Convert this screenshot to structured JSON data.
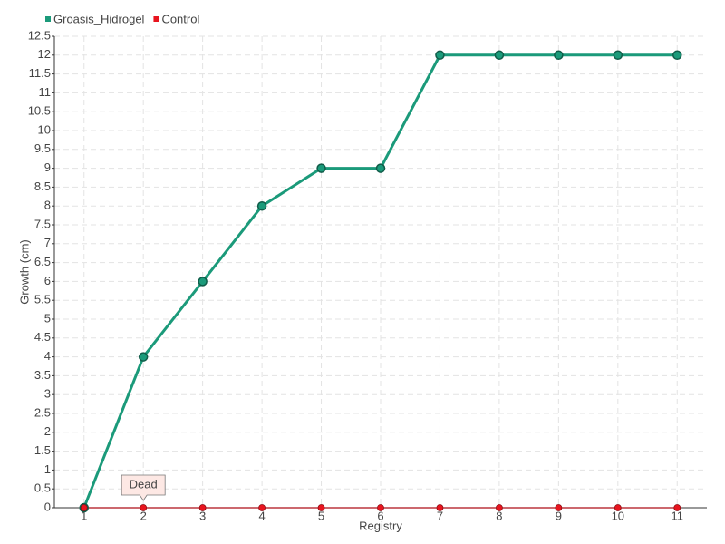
{
  "chart_data": {
    "type": "line",
    "x": [
      1,
      2,
      3,
      4,
      5,
      6,
      7,
      8,
      9,
      10,
      11
    ],
    "xlim": [
      0.5,
      11.5
    ],
    "xticks": [
      1,
      2,
      3,
      4,
      5,
      6,
      7,
      8,
      9,
      10,
      11
    ],
    "ylim": [
      0,
      12.5
    ],
    "yticks": [
      0,
      0.5,
      1,
      1.5,
      2,
      2.5,
      3,
      3.5,
      4,
      4.5,
      5,
      5.5,
      6,
      6.5,
      7,
      7.5,
      8,
      8.5,
      9,
      9.5,
      10,
      10.5,
      11,
      11.5,
      12,
      12.5
    ],
    "x_label": "Registry",
    "y_label": "Growth (cm)",
    "grid": true,
    "legend": "top-left",
    "series": [
      {
        "name": "Groasis_Hidrogel",
        "color": "#1b9a7a",
        "values": [
          0,
          4,
          6,
          8,
          9,
          9,
          12,
          12,
          12,
          12,
          12
        ]
      },
      {
        "name": "Control",
        "color": "#e8141e",
        "values": [
          0,
          0,
          0,
          0,
          0,
          0,
          0,
          0,
          0,
          0,
          0
        ]
      }
    ],
    "annotations": [
      {
        "text": "Dead",
        "x": 2,
        "y": 0
      }
    ]
  }
}
